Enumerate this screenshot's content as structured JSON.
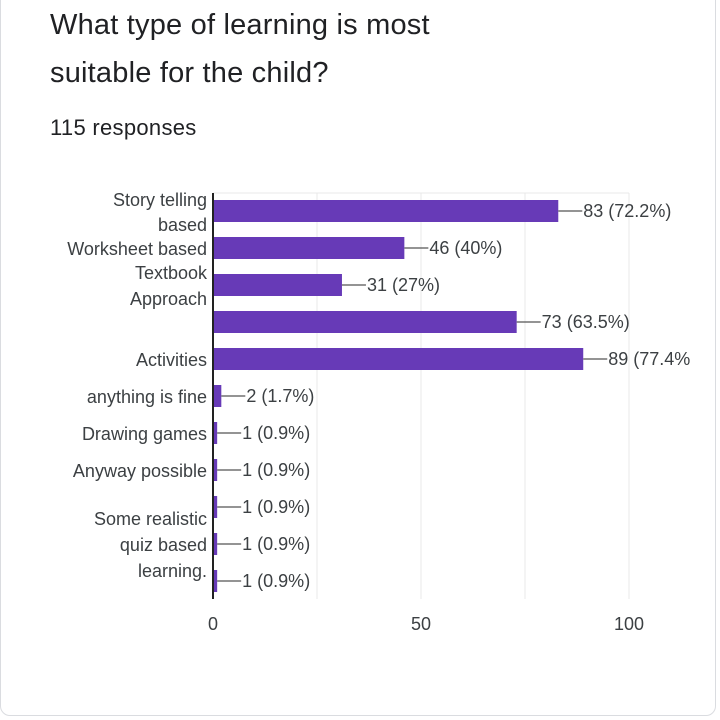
{
  "question": {
    "title_line1": "What type of learning is most",
    "title_line2": "suitable for the child?",
    "responses": "115 responses"
  },
  "colors": {
    "bar": "#673ab7",
    "gridline": "#e8e8e8",
    "leader": "#555555",
    "axis": "#222222"
  },
  "chart_data": {
    "type": "bar",
    "orientation": "horizontal",
    "categories": [
      "Story telling based",
      "Worksheet based",
      "Textbook Approach",
      "",
      "Activities",
      "anything is fine",
      "Drawing games",
      "Anyway possible",
      "Some realistic",
      "quiz based",
      "learning."
    ],
    "category_lines": [
      [
        "Story telling",
        "based"
      ],
      [
        "Worksheet based"
      ],
      [
        "Textbook",
        "Approach"
      ],
      [],
      [
        "Activities"
      ],
      [
        "anything is fine"
      ],
      [
        "Drawing games"
      ],
      [
        "Anyway possible"
      ],
      [
        "Some realistic"
      ],
      [
        "quiz based"
      ],
      [
        "learning."
      ]
    ],
    "values": [
      83,
      46,
      31,
      73,
      89,
      2,
      1,
      1,
      1,
      1,
      1
    ],
    "value_labels": [
      "83 (72.2%)",
      "46 (40%)",
      "31 (27%)",
      "73 (63.5%)",
      "89 (77.4%",
      "2 (1.7%)",
      "1 (0.9%)",
      "1 (0.9%)",
      "1 (0.9%)",
      "1 (0.9%)",
      "1 (0.9%)"
    ],
    "xlim": [
      0,
      100
    ],
    "x_ticks": [
      0,
      50,
      100
    ],
    "grid": true,
    "legend": "none"
  }
}
